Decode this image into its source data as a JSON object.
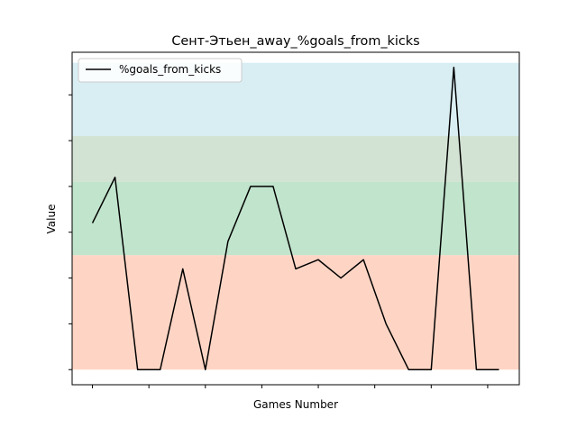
{
  "chart_data": {
    "type": "line",
    "title": "Сент-Этьен_away_%goals_from_kicks",
    "xlabel": "Games Number",
    "ylabel": "Value",
    "x": [
      0,
      1,
      2,
      3,
      4,
      5,
      6,
      7,
      8,
      9,
      10,
      11,
      12,
      13,
      14,
      15,
      16,
      17,
      18
    ],
    "series": [
      {
        "name": "%goals_from_kicks",
        "color": "#000000",
        "values": [
          1.6,
          2.1,
          0.0,
          0.0,
          1.1,
          0.0,
          1.4,
          2.0,
          2.0,
          1.1,
          1.2,
          1.0,
          1.2,
          0.5,
          0.0,
          0.0,
          3.3,
          0.0,
          0.0
        ]
      }
    ],
    "xlim": [
      -0.9,
      18.9
    ],
    "ylim": [
      -0.165,
      3.465
    ],
    "x_ticks": [
      0,
      2.5,
      5,
      7.5,
      10,
      12.5,
      15,
      17.5
    ],
    "y_ticks": [
      0,
      0.5,
      1,
      1.5,
      2,
      2.5,
      3
    ],
    "tick_labels_visible": false,
    "bands": [
      {
        "from": 0.0,
        "to": 1.25,
        "color": "#fdc3ad"
      },
      {
        "from": 1.25,
        "to": 2.05,
        "color": "#a6d9b6"
      },
      {
        "from": 2.05,
        "to": 2.55,
        "color": "#c1d7c1"
      },
      {
        "from": 2.55,
        "to": 3.35,
        "color": "#c9e7ee"
      }
    ],
    "grid": false,
    "legend_position": "top-left"
  }
}
